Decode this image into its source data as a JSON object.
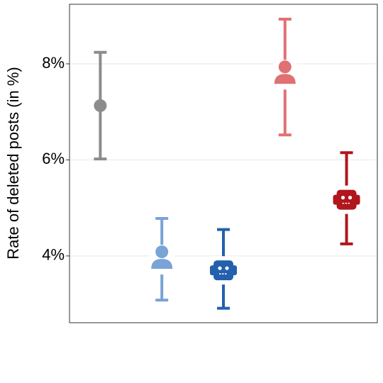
{
  "chart_data": {
    "type": "errorbar",
    "y_label": "Rate of deleted posts (in %)",
    "categories": [
      null,
      null,
      null,
      null,
      null
    ],
    "values": [
      7.13,
      3.85,
      3.7,
      7.7,
      5.17
    ],
    "lower": [
      6.02,
      3.08,
      2.91,
      6.52,
      4.25
    ],
    "upper": [
      8.24,
      4.78,
      4.55,
      8.93,
      6.15
    ],
    "colors": [
      "#8c8c8c",
      "#7aa3d6",
      "#2360ad",
      "#e07173",
      "#b0161c"
    ],
    "markers": [
      "circle",
      "person",
      "robot",
      "person",
      "robot"
    ],
    "ylim": [
      2.61,
      9.24
    ],
    "yticks": [
      {
        "value": 4,
        "label": "4%"
      },
      {
        "value": 6,
        "label": "6%"
      },
      {
        "value": 8,
        "label": "8%"
      }
    ],
    "grid": true
  }
}
